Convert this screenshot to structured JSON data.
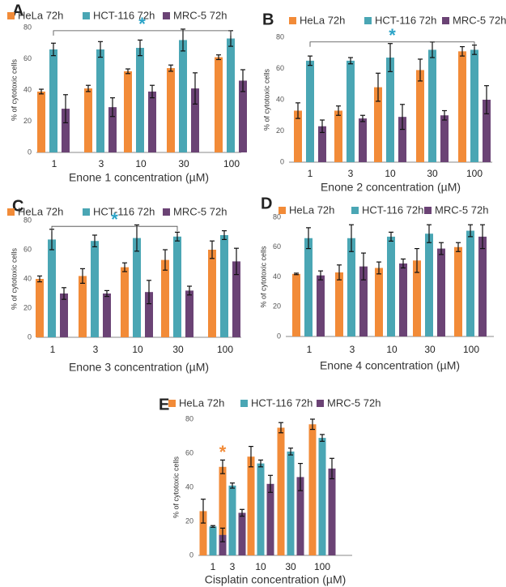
{
  "colors": {
    "hela": "#F28B38",
    "hct": "#4AA6B4",
    "mrc": "#6B4375",
    "star_blue": "#2AA3C7",
    "star_orange": "#F28B38",
    "axis": "#888888",
    "text": "#333333"
  },
  "legend_labels": [
    "HeLa 72h",
    "HCT-116 72h",
    "MRC-5 72h"
  ],
  "ylabel": "% of cytotoxic cells",
  "chart_data": [
    {
      "panel": "A",
      "type": "bar",
      "title": "",
      "xlabel": "Enone 1 concentration (µM)",
      "ylabel": "% of cytotoxic cells",
      "ylim": [
        0,
        80
      ],
      "yticks": [
        "0",
        "20",
        "40",
        "60",
        "80"
      ],
      "categories": [
        "1",
        "3",
        "10",
        "30",
        "100"
      ],
      "series": [
        {
          "name": "HeLa 72h",
          "values": [
            39,
            41,
            52,
            54,
            61
          ],
          "errors": [
            1.5,
            2,
            1.5,
            2,
            1.5
          ]
        },
        {
          "name": "HCT-116 72h",
          "values": [
            66,
            66,
            67,
            72,
            73
          ],
          "errors": [
            4,
            5,
            5,
            7,
            5
          ]
        },
        {
          "name": "MRC-5 72h",
          "values": [
            28,
            29,
            39,
            41,
            46
          ],
          "errors": [
            9,
            6,
            4,
            10,
            7
          ]
        }
      ],
      "significance": {
        "symbol": "*",
        "from": "1",
        "to": "100",
        "level": 78,
        "color": "blue"
      }
    },
    {
      "panel": "B",
      "type": "bar",
      "title": "",
      "xlabel": "Enone 2 concentration (µM)",
      "ylabel": "% of cytotoxic cells",
      "ylim": [
        0,
        80
      ],
      "yticks": [
        "0",
        "20",
        "40",
        "60",
        "80"
      ],
      "categories": [
        "1",
        "3",
        "10",
        "30",
        "100"
      ],
      "series": [
        {
          "name": "HeLa 72h",
          "values": [
            33,
            33,
            48,
            59,
            71
          ],
          "errors": [
            5,
            3,
            9,
            7,
            3
          ]
        },
        {
          "name": "HCT-116 72h",
          "values": [
            65,
            65,
            67,
            72,
            72
          ],
          "errors": [
            3,
            2,
            9,
            5,
            3
          ]
        },
        {
          "name": "MRC-5 72h",
          "values": [
            23,
            28,
            29,
            30,
            40
          ],
          "errors": [
            4,
            2,
            8,
            3,
            9
          ]
        }
      ],
      "significance": {
        "symbol": "*",
        "from": "1",
        "to": "100",
        "level": 77,
        "color": "blue"
      }
    },
    {
      "panel": "C",
      "type": "bar",
      "title": "",
      "xlabel": "Enone 3 concentration (µM)",
      "ylabel": "% of cytotoxic cells",
      "ylim": [
        0,
        80
      ],
      "yticks": [
        "0",
        "20",
        "40",
        "60",
        "80"
      ],
      "categories": [
        "1",
        "3",
        "10",
        "30",
        "100"
      ],
      "series": [
        {
          "name": "HeLa 72h",
          "values": [
            40,
            42,
            48,
            53,
            60
          ],
          "errors": [
            2,
            5,
            3,
            7,
            6
          ]
        },
        {
          "name": "HCT-116 72h",
          "values": [
            67,
            66,
            68,
            69,
            70
          ],
          "errors": [
            7,
            4,
            9,
            3,
            3
          ]
        },
        {
          "name": "MRC-5 72h",
          "values": [
            30,
            30,
            31,
            32,
            52
          ],
          "errors": [
            4,
            2,
            8,
            3,
            9
          ]
        }
      ],
      "significance": {
        "symbol": "*",
        "from": "1",
        "to": "30",
        "level": 76,
        "color": "blue"
      }
    },
    {
      "panel": "D",
      "type": "bar",
      "title": "",
      "xlabel": "Enone 4 concentration (µM)",
      "ylabel": "% of cytotoxic cells",
      "ylim": [
        0,
        80
      ],
      "yticks": [
        "0",
        "20",
        "40",
        "60",
        "80"
      ],
      "categories": [
        "1",
        "3",
        "10",
        "30",
        "100"
      ],
      "series": [
        {
          "name": "HeLa 72h",
          "values": [
            42,
            43,
            46,
            51,
            60
          ],
          "errors": [
            0.5,
            5,
            4,
            8,
            3
          ]
        },
        {
          "name": "HCT-116 72h",
          "values": [
            66,
            66,
            67,
            69,
            71
          ],
          "errors": [
            7,
            9,
            3,
            6,
            4
          ]
        },
        {
          "name": "MRC-5 72h",
          "values": [
            41,
            47,
            49,
            59,
            67
          ],
          "errors": [
            3,
            9,
            3,
            4,
            8
          ]
        }
      ]
    },
    {
      "panel": "E",
      "type": "bar",
      "title": "",
      "xlabel": "Cisplatin concentration (µM)",
      "ylabel": "% of cytotoxic cells",
      "ylim": [
        0,
        80
      ],
      "yticks": [
        "0",
        "20",
        "40",
        "60",
        "80"
      ],
      "categories": [
        "1",
        "3",
        "10",
        "30",
        "100"
      ],
      "series": [
        {
          "name": "HeLa 72h",
          "values": [
            26,
            52,
            58,
            75,
            77
          ],
          "errors": [
            7,
            4,
            6,
            3,
            3
          ]
        },
        {
          "name": "HCT-116 72h",
          "values": [
            17,
            41,
            54,
            61,
            69
          ],
          "errors": [
            0.5,
            1.5,
            2,
            2,
            2
          ]
        },
        {
          "name": "MRC-5 72h",
          "values": [
            12,
            25,
            42,
            46,
            51
          ],
          "errors": [
            4,
            2,
            5,
            8,
            6
          ]
        }
      ],
      "significance": {
        "symbol": "*",
        "at": "3",
        "level": 60,
        "color": "orange"
      }
    }
  ]
}
